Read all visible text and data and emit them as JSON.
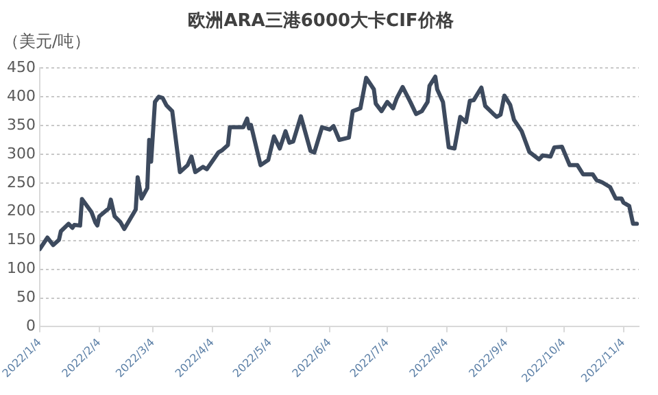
{
  "chart_data": {
    "type": "line",
    "title": "欧洲ARA三港6000大卡CIF价格",
    "ylabel": "（美元/吨）",
    "x": [
      "2022-01-04",
      "2022-01-08",
      "2022-01-11",
      "2022-01-14",
      "2022-01-15",
      "2022-01-19",
      "2022-01-21",
      "2022-01-22",
      "2022-01-25",
      "2022-01-26",
      "2022-01-31",
      "2022-02-02",
      "2022-02-03",
      "2022-02-04",
      "2022-02-09",
      "2022-02-10",
      "2022-02-12",
      "2022-02-15",
      "2022-02-17",
      "2022-02-23",
      "2022-02-24",
      "2022-02-26",
      "2022-03-01",
      "2022-03-02",
      "2022-03-03",
      "2022-03-05",
      "2022-03-07",
      "2022-03-09",
      "2022-03-11",
      "2022-03-14",
      "2022-03-18",
      "2022-03-22",
      "2022-03-24",
      "2022-03-26",
      "2022-03-30",
      "2022-04-01",
      "2022-04-07",
      "2022-04-09",
      "2022-04-12",
      "2022-04-13",
      "2022-04-20",
      "2022-04-22",
      "2022-04-23",
      "2022-04-24",
      "2022-04-29",
      "2022-05-03",
      "2022-05-06",
      "2022-05-09",
      "2022-05-12",
      "2022-05-14",
      "2022-05-16",
      "2022-05-20",
      "2022-05-25",
      "2022-05-27",
      "2022-05-31",
      "2022-06-04",
      "2022-06-06",
      "2022-06-09",
      "2022-06-14",
      "2022-06-16",
      "2022-06-20",
      "2022-06-23",
      "2022-06-27",
      "2022-06-28",
      "2022-07-01",
      "2022-07-04",
      "2022-07-07",
      "2022-07-09",
      "2022-07-12",
      "2022-07-16",
      "2022-07-19",
      "2022-07-22",
      "2022-07-25",
      "2022-07-26",
      "2022-07-29",
      "2022-07-30",
      "2022-08-02",
      "2022-08-05",
      "2022-08-08",
      "2022-08-11",
      "2022-08-14",
      "2022-08-16",
      "2022-08-18",
      "2022-08-22",
      "2022-08-24",
      "2022-08-28",
      "2022-08-30",
      "2022-09-01",
      "2022-09-03",
      "2022-09-06",
      "2022-09-08",
      "2022-09-12",
      "2022-09-14",
      "2022-09-16",
      "2022-09-21",
      "2022-09-23",
      "2022-09-27",
      "2022-09-29",
      "2022-10-03",
      "2022-10-07",
      "2022-10-11",
      "2022-10-14",
      "2022-10-19",
      "2022-10-21",
      "2022-10-24",
      "2022-10-28",
      "2022-10-31",
      "2022-11-03",
      "2022-11-04",
      "2022-11-07",
      "2022-11-09",
      "2022-11-11"
    ],
    "series": [
      {
        "color": "#3d4a5e",
        "values": [
          135,
          155,
          142,
          151,
          166,
          179,
          172,
          177,
          176,
          222,
          199,
          181,
          176,
          192,
          206,
          221,
          192,
          182,
          170,
          204,
          260,
          223,
          241,
          325,
          287,
          391,
          400,
          398,
          385,
          375,
          269,
          281,
          296,
          269,
          278,
          274,
          303,
          307,
          316,
          347,
          347,
          362,
          345,
          351,
          281,
          290,
          331,
          310,
          340,
          320,
          322,
          366,
          306,
          303,
          347,
          343,
          349,
          325,
          329,
          375,
          380,
          433,
          413,
          388,
          375,
          391,
          380,
          398,
          417,
          391,
          370,
          375,
          391,
          419,
          435,
          413,
          391,
          312,
          310,
          365,
          356,
          393,
          394,
          416,
          384,
          371,
          365,
          369,
          402,
          386,
          360,
          340,
          322,
          304,
          291,
          298,
          296,
          312,
          313,
          281,
          281,
          265,
          265,
          255,
          251,
          243,
          223,
          223,
          216,
          210,
          179,
          179
        ]
      }
    ],
    "xlim": [
      "2022-01-04",
      "2022-11-12"
    ],
    "xticks": [
      {
        "value": "2022-01-04",
        "label": "2022/1/4"
      },
      {
        "value": "2022-02-04",
        "label": "2022/2/4"
      },
      {
        "value": "2022-03-04",
        "label": "2022/3/4"
      },
      {
        "value": "2022-04-04",
        "label": "2022/4/4"
      },
      {
        "value": "2022-05-04",
        "label": "2022/5/4"
      },
      {
        "value": "2022-06-04",
        "label": "2022/6/4"
      },
      {
        "value": "2022-07-04",
        "label": "2022/7/4"
      },
      {
        "value": "2022-08-04",
        "label": "2022/8/4"
      },
      {
        "value": "2022-09-04",
        "label": "2022/9/4"
      },
      {
        "value": "2022-10-04",
        "label": "2022/10/4"
      },
      {
        "value": "2022-11-04",
        "label": "2022/11/4"
      }
    ],
    "ylim": [
      0,
      450
    ],
    "yticks": [
      0,
      50,
      100,
      150,
      200,
      250,
      300,
      350,
      400,
      450
    ],
    "grid": "y",
    "legend": false,
    "marker": "none",
    "line_style": "solid"
  }
}
